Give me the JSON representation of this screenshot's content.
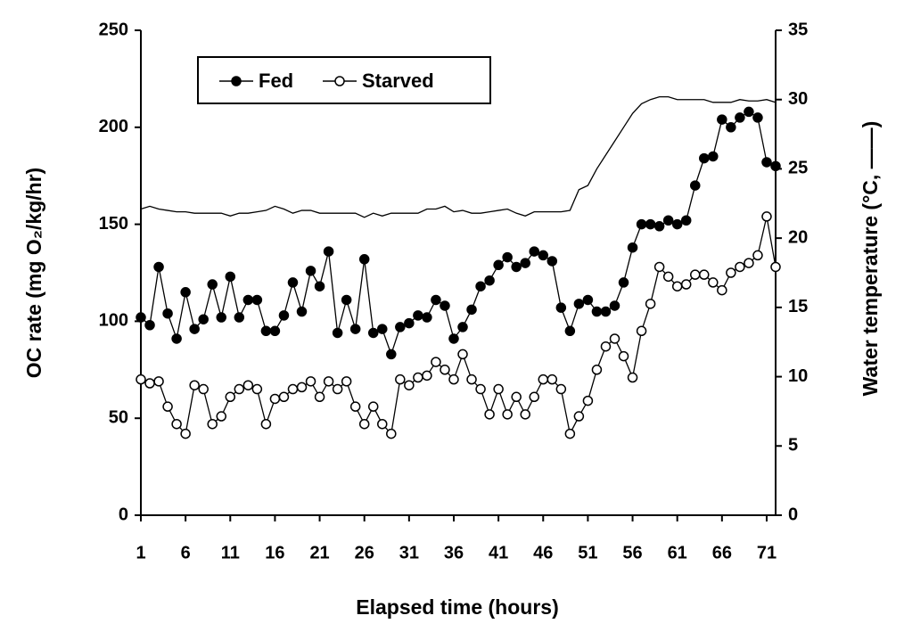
{
  "chart_data": {
    "type": "line",
    "x_label": "Elapsed time (hours)",
    "y_label": "OC rate (mg O₂/kg/hr)",
    "y2_label": "Water temperature (°C, ——)",
    "x": [
      1,
      2,
      3,
      4,
      5,
      6,
      7,
      8,
      9,
      10,
      11,
      12,
      13,
      14,
      15,
      16,
      17,
      18,
      19,
      20,
      21,
      22,
      23,
      24,
      25,
      26,
      27,
      28,
      29,
      30,
      31,
      32,
      33,
      34,
      35,
      36,
      37,
      38,
      39,
      40,
      41,
      42,
      43,
      44,
      45,
      46,
      47,
      48,
      49,
      50,
      51,
      52,
      53,
      54,
      55,
      56,
      57,
      58,
      59,
      60,
      61,
      62,
      63,
      64,
      65,
      66,
      67,
      68,
      69,
      70,
      71,
      72
    ],
    "xlim": [
      1,
      72
    ],
    "xticks": [
      1,
      6,
      11,
      16,
      21,
      26,
      31,
      36,
      41,
      46,
      51,
      56,
      61,
      66,
      71
    ],
    "ylim": [
      0,
      250
    ],
    "yticks": [
      0,
      50,
      100,
      150,
      200,
      250
    ],
    "y2lim": [
      0,
      35
    ],
    "y2ticks": [
      0,
      5,
      10,
      15,
      20,
      25,
      30,
      35
    ],
    "legend": "upper left",
    "series": [
      {
        "name": "Fed",
        "color": "#000000",
        "marker": "filled",
        "values": [
          102,
          98,
          128,
          104,
          91,
          115,
          96,
          101,
          119,
          102,
          123,
          102,
          111,
          111,
          95,
          95,
          103,
          120,
          105,
          126,
          118,
          136,
          94,
          111,
          96,
          132,
          94,
          96,
          83,
          97,
          99,
          103,
          102,
          111,
          108,
          91,
          97,
          106,
          118,
          121,
          129,
          133,
          128,
          130,
          136,
          134,
          131,
          107,
          95,
          109,
          111,
          105,
          105,
          108,
          120,
          138,
          150,
          150,
          149,
          152,
          150,
          152,
          170,
          184,
          185,
          204,
          200,
          205,
          208,
          205,
          182,
          180
        ]
      },
      {
        "name": "Starved",
        "color": "#000000",
        "marker": "open",
        "values": [
          70,
          68,
          69,
          56,
          47,
          42,
          67,
          65,
          47,
          51,
          61,
          65,
          67,
          65,
          47,
          60,
          61,
          65,
          66,
          69,
          61,
          69,
          65,
          69,
          56,
          47,
          56,
          47,
          42,
          70,
          67,
          71,
          72,
          79,
          75,
          70,
          83,
          70,
          65,
          52,
          65,
          52,
          61,
          52,
          61,
          70,
          70,
          65,
          42,
          51,
          59,
          75,
          87,
          91,
          82,
          71,
          95,
          109,
          128,
          123,
          118,
          119,
          124,
          124,
          120,
          116,
          125,
          128,
          130,
          134,
          154,
          128
        ]
      },
      {
        "axis": "y2",
        "color": "#000000",
        "marker": "none",
        "values": [
          22.1,
          22.3,
          22.1,
          22.0,
          21.9,
          21.9,
          21.8,
          21.8,
          21.8,
          21.8,
          21.6,
          21.8,
          21.8,
          21.9,
          22.0,
          22.3,
          22.1,
          21.8,
          22.0,
          22.0,
          21.8,
          21.8,
          21.8,
          21.8,
          21.8,
          21.5,
          21.8,
          21.6,
          21.8,
          21.8,
          21.8,
          21.8,
          22.1,
          22.1,
          22.3,
          21.9,
          22.0,
          21.8,
          21.8,
          21.9,
          22.0,
          22.1,
          21.8,
          21.6,
          21.9,
          21.9,
          21.9,
          21.9,
          22.0,
          23.5,
          23.8,
          25.0,
          26.0,
          27.0,
          28.0,
          29.0,
          29.7,
          30.0,
          30.2,
          30.2,
          30.0,
          30.0,
          30.0,
          30.0,
          29.8,
          29.8,
          29.8,
          30.0,
          29.9,
          29.9,
          30.0,
          29.8
        ]
      }
    ]
  }
}
